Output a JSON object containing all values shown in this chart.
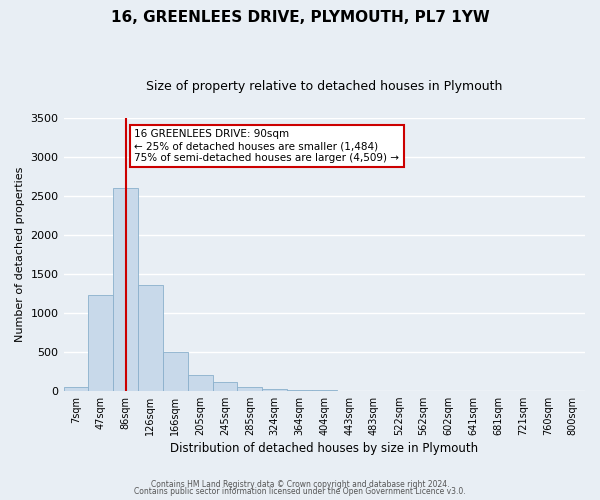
{
  "title": "16, GREENLEES DRIVE, PLYMOUTH, PL7 1YW",
  "subtitle": "Size of property relative to detached houses in Plymouth",
  "xlabel": "Distribution of detached houses by size in Plymouth",
  "ylabel": "Number of detached properties",
  "bar_labels": [
    "7sqm",
    "47sqm",
    "86sqm",
    "126sqm",
    "166sqm",
    "205sqm",
    "245sqm",
    "285sqm",
    "324sqm",
    "364sqm",
    "404sqm",
    "443sqm",
    "483sqm",
    "522sqm",
    "562sqm",
    "602sqm",
    "641sqm",
    "681sqm",
    "721sqm",
    "760sqm",
    "800sqm"
  ],
  "bar_values": [
    50,
    1230,
    2600,
    1350,
    500,
    205,
    110,
    50,
    25,
    15,
    5,
    0,
    0,
    0,
    0,
    0,
    0,
    0,
    0,
    0,
    0
  ],
  "bar_color": "#c8d9ea",
  "bar_edgecolor": "#8ab0cc",
  "vline_x": 2,
  "vline_color": "#cc0000",
  "ylim": [
    0,
    3500
  ],
  "yticks": [
    0,
    500,
    1000,
    1500,
    2000,
    2500,
    3000,
    3500
  ],
  "annotation_box_text": "16 GREENLEES DRIVE: 90sqm\n← 25% of detached houses are smaller (1,484)\n75% of semi-detached houses are larger (4,509) →",
  "annotation_box_color": "#cc0000",
  "footnote1": "Contains HM Land Registry data © Crown copyright and database right 2024.",
  "footnote2": "Contains public sector information licensed under the Open Government Licence v3.0.",
  "bg_color": "#e8eef4",
  "plot_bg_color": "#e8eef4",
  "grid_color": "#ffffff",
  "title_fontsize": 11,
  "subtitle_fontsize": 9
}
